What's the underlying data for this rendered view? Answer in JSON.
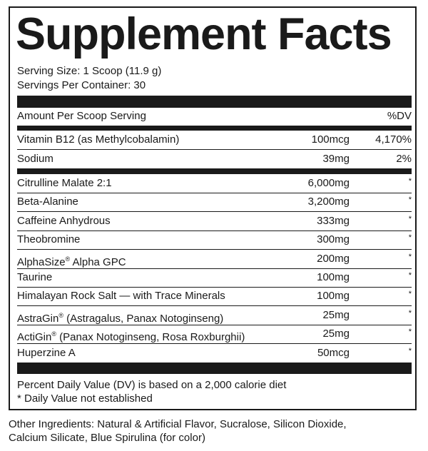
{
  "title": "Supplement Facts",
  "serving_size": "Serving Size: 1 Scoop (11.9 g)",
  "servings_per_container": "Servings Per Container: 30",
  "header": {
    "amount": "Amount Per Scoop Serving",
    "dv": "%DV"
  },
  "vitamins": [
    {
      "name": "Vitamin B12 (as Methylcobalamin)",
      "amount": "100mcg",
      "dv": "4,170%"
    },
    {
      "name": "Sodium",
      "amount": "39mg",
      "dv": "2%"
    }
  ],
  "ingredients": [
    {
      "name": "Citrulline Malate 2:1",
      "amount": "6,000mg",
      "dv": "*"
    },
    {
      "name": "Beta-Alanine",
      "amount": "3,200mg",
      "dv": "*"
    },
    {
      "name": "Caffeine Anhydrous",
      "amount": "333mg",
      "dv": "*"
    },
    {
      "name": "Theobromine",
      "amount": "300mg",
      "dv": "*"
    },
    {
      "name": "AlphaSize",
      "reg": "®",
      "rest": " Alpha GPC",
      "amount": "200mg",
      "dv": "*"
    },
    {
      "name": "Taurine",
      "amount": "100mg",
      "dv": "*"
    },
    {
      "name": "Himalayan Rock Salt — with Trace Minerals",
      "amount": "100mg",
      "dv": "*"
    },
    {
      "name": "AstraGin",
      "reg": "®",
      "rest": " (Astragalus, Panax Notoginseng)",
      "amount": "25mg",
      "dv": "*"
    },
    {
      "name": "ActiGin",
      "reg": "®",
      "rest": " (Panax Notoginseng, Rosa Roxburghii)",
      "amount": "25mg",
      "dv": "*"
    },
    {
      "name": "Huperzine A",
      "amount": "50mcg",
      "dv": "*"
    }
  ],
  "footnotes": [
    "Percent Daily Value (DV) is based on a 2,000 calorie diet",
    "* Daily Value not established"
  ],
  "other_ingredients": [
    "Other Ingredients: Natural & Artificial Flavor, Sucralose, Silicon Dioxide,",
    "Calcium Silicate, Blue Spirulina (for color)"
  ]
}
